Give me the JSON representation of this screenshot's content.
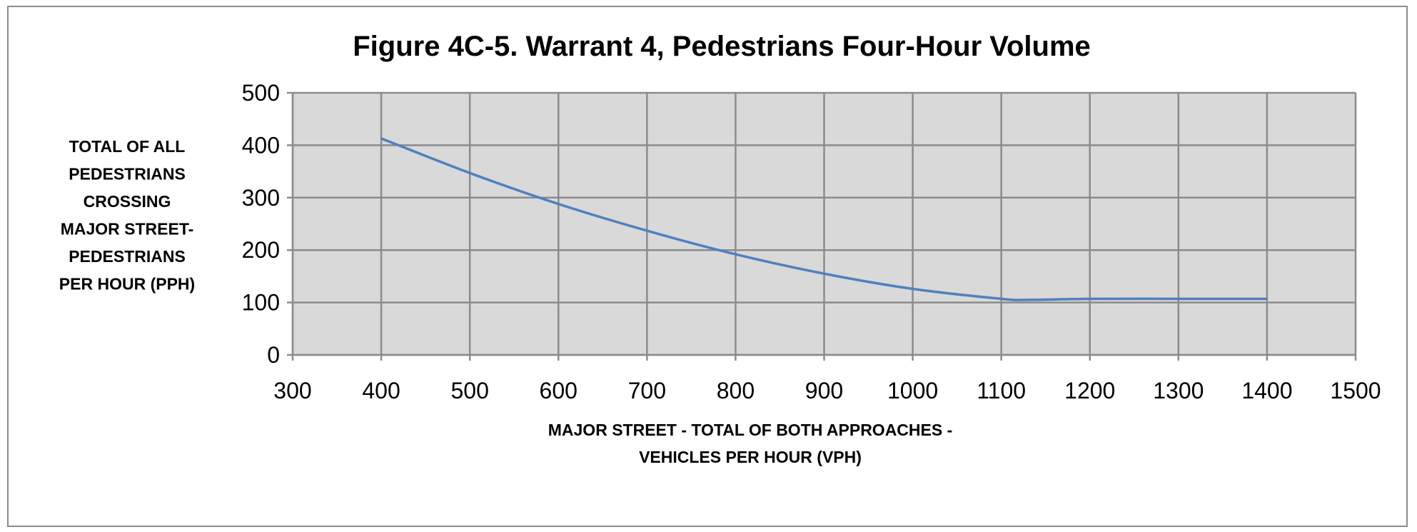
{
  "chart_data": {
    "type": "line",
    "title": "Figure 4C-5. Warrant 4, Pedestrians Four-Hour Volume",
    "ylabel_lines": [
      "TOTAL OF ALL",
      "PEDESTRIANS",
      "CROSSING",
      "MAJOR STREET-",
      "PEDESTRIANS",
      "PER HOUR (PPH)"
    ],
    "xlabel_lines": [
      "MAJOR STREET - TOTAL OF BOTH APPROACHES -",
      "VEHICLES PER HOUR (VPH)"
    ],
    "xlim": [
      300,
      1500
    ],
    "ylim": [
      0,
      500
    ],
    "x_ticks": [
      300,
      400,
      500,
      600,
      700,
      800,
      900,
      1000,
      1100,
      1200,
      1300,
      1400,
      1500
    ],
    "y_ticks": [
      0,
      100,
      200,
      300,
      400,
      500
    ],
    "grid": true,
    "series": [
      {
        "color": "#4f81bd",
        "x": [
          400,
          500,
          600,
          700,
          800,
          900,
          1000,
          1100,
          1130,
          1200,
          1300,
          1400
        ],
        "y": [
          413,
          347,
          288,
          237,
          192,
          155,
          126,
          107,
          105,
          107,
          107,
          107
        ]
      }
    ],
    "plot_bg": "#d9d9d9",
    "grid_color": "#8c8c8c"
  }
}
